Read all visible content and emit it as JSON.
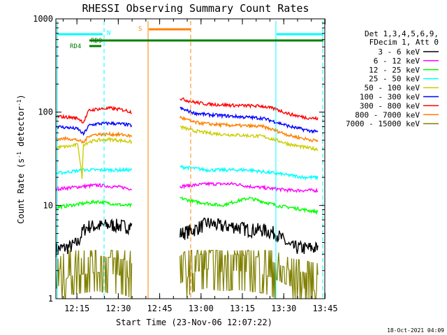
{
  "chart_data": {
    "type": "line",
    "title": "RHESSI Observing Summary Count Rates",
    "xlabel": "Start Time (23-Nov-06 12:07:22)",
    "ylabel_main": "Count Rate (s",
    "ylabel_sup1": "-1",
    "ylabel_mid": " detector",
    "ylabel_sup2": "-1",
    "ylabel_end": ")",
    "y_scale": "log",
    "ylim": [
      1,
      1000
    ],
    "xlim_minutes": [
      0,
      97.5
    ],
    "x_ticks": [
      {
        "label": "12:15",
        "min": 7.63
      },
      {
        "label": "12:30",
        "min": 22.63
      },
      {
        "label": "12:45",
        "min": 37.63
      },
      {
        "label": "13:00",
        "min": 52.63
      },
      {
        "label": "13:15",
        "min": 67.63
      },
      {
        "label": "13:30",
        "min": 82.63
      },
      {
        "label": "13:45",
        "min": 97.63
      }
    ],
    "y_ticks": [
      {
        "label": "1",
        "v": 1
      },
      {
        "label": "10",
        "v": 10
      },
      {
        "label": "100",
        "v": 100
      },
      {
        "label": "1000",
        "v": 1000
      }
    ],
    "legend_header": [
      "Det 1,3,4,5,6,9,",
      "FDecim 1, Att 0"
    ],
    "series": [
      {
        "name": "3 - 6 keV",
        "color": "#000000",
        "values": [
          [
            0,
            3.4
          ],
          [
            5,
            3.6
          ],
          [
            8,
            4
          ],
          [
            10,
            5.5
          ],
          [
            12,
            6
          ],
          [
            15,
            6
          ],
          [
            20,
            6.2
          ],
          [
            25,
            6
          ],
          [
            27.5,
            6
          ]
        ],
        "values2": [
          [
            45,
            5
          ],
          [
            50,
            5.5
          ],
          [
            55,
            6.5
          ],
          [
            60,
            6
          ],
          [
            65,
            6
          ],
          [
            70,
            5.5
          ],
          [
            75,
            5.5
          ],
          [
            80,
            5
          ],
          [
            85,
            3.6
          ],
          [
            90,
            3.5
          ],
          [
            95,
            3.5
          ]
        ]
      },
      {
        "name": "6 - 12 keV",
        "color": "#ff00ff",
        "values": [
          [
            0,
            15
          ],
          [
            5,
            15.5
          ],
          [
            10,
            16
          ],
          [
            15,
            16.5
          ],
          [
            20,
            16
          ],
          [
            25,
            15.5
          ],
          [
            27.5,
            15
          ]
        ],
        "values2": [
          [
            45,
            16
          ],
          [
            50,
            16.5
          ],
          [
            55,
            17
          ],
          [
            60,
            17
          ],
          [
            65,
            17
          ],
          [
            70,
            16
          ],
          [
            75,
            15.5
          ],
          [
            80,
            15
          ],
          [
            85,
            14.5
          ],
          [
            90,
            14.5
          ],
          [
            95,
            14.5
          ]
        ]
      },
      {
        "name": "12 - 25 keV",
        "color": "#00ff00",
        "values": [
          [
            0,
            9.5
          ],
          [
            5,
            10
          ],
          [
            10,
            10.5
          ],
          [
            15,
            11
          ],
          [
            20,
            10.5
          ],
          [
            25,
            10
          ],
          [
            27.5,
            10
          ]
        ],
        "values2": [
          [
            45,
            12
          ],
          [
            50,
            11
          ],
          [
            55,
            10.5
          ],
          [
            60,
            10
          ],
          [
            65,
            11
          ],
          [
            70,
            12
          ],
          [
            75,
            11
          ],
          [
            80,
            10
          ],
          [
            85,
            9.5
          ],
          [
            90,
            9
          ],
          [
            95,
            8.5
          ]
        ]
      },
      {
        "name": "25 - 50 keV",
        "color": "#00ffff",
        "values": [
          [
            0,
            22
          ],
          [
            5,
            23
          ],
          [
            10,
            24
          ],
          [
            15,
            24
          ],
          [
            20,
            24
          ],
          [
            25,
            24
          ],
          [
            27.5,
            24
          ]
        ],
        "values2": [
          [
            45,
            26
          ],
          [
            50,
            25
          ],
          [
            55,
            24
          ],
          [
            60,
            24
          ],
          [
            65,
            24
          ],
          [
            70,
            24
          ],
          [
            75,
            23
          ],
          [
            80,
            22
          ],
          [
            85,
            21
          ],
          [
            90,
            20
          ],
          [
            95,
            20
          ]
        ]
      },
      {
        "name": "50 - 100 keV",
        "color": "#cccc00",
        "values": [
          [
            0,
            42
          ],
          [
            5,
            43
          ],
          [
            8,
            45
          ],
          [
            9.5,
            20
          ],
          [
            10,
            45
          ],
          [
            12,
            48
          ],
          [
            15,
            50
          ],
          [
            20,
            51
          ],
          [
            25,
            49
          ],
          [
            27.5,
            48
          ]
        ],
        "values2": [
          [
            45,
            70
          ],
          [
            50,
            63
          ],
          [
            55,
            60
          ],
          [
            60,
            58
          ],
          [
            65,
            57
          ],
          [
            70,
            56
          ],
          [
            75,
            55
          ],
          [
            80,
            50
          ],
          [
            85,
            45
          ],
          [
            90,
            42
          ],
          [
            95,
            40
          ]
        ]
      },
      {
        "name": "100 - 300 keV",
        "color": "#0000ff",
        "values": [
          [
            0,
            70
          ],
          [
            5,
            68
          ],
          [
            8,
            66
          ],
          [
            10,
            58
          ],
          [
            12,
            72
          ],
          [
            15,
            75
          ],
          [
            20,
            76
          ],
          [
            25,
            74
          ],
          [
            27.5,
            72
          ]
        ],
        "values2": [
          [
            45,
            110
          ],
          [
            50,
            98
          ],
          [
            55,
            94
          ],
          [
            60,
            92
          ],
          [
            65,
            90
          ],
          [
            70,
            88
          ],
          [
            75,
            86
          ],
          [
            80,
            78
          ],
          [
            85,
            70
          ],
          [
            90,
            65
          ],
          [
            95,
            61
          ]
        ]
      },
      {
        "name": "300 - 800 keV",
        "color": "#ff0000",
        "values": [
          [
            0,
            90
          ],
          [
            5,
            88
          ],
          [
            8,
            86
          ],
          [
            10,
            78
          ],
          [
            12,
            104
          ],
          [
            15,
            108
          ],
          [
            20,
            110
          ],
          [
            25,
            105
          ],
          [
            27.5,
            100
          ]
        ],
        "values2": [
          [
            45,
            140
          ],
          [
            50,
            128
          ],
          [
            55,
            122
          ],
          [
            60,
            120
          ],
          [
            65,
            118
          ],
          [
            70,
            117
          ],
          [
            75,
            116
          ],
          [
            80,
            107
          ],
          [
            85,
            95
          ],
          [
            90,
            88
          ],
          [
            95,
            85
          ]
        ]
      },
      {
        "name": "800 - 7000 keV",
        "color": "#ff8000",
        "values": [
          [
            0,
            52
          ],
          [
            5,
            52
          ],
          [
            8,
            50
          ],
          [
            10,
            47
          ],
          [
            12,
            56
          ],
          [
            15,
            58
          ],
          [
            20,
            58
          ],
          [
            25,
            57
          ],
          [
            27.5,
            55
          ]
        ],
        "values2": [
          [
            45,
            88
          ],
          [
            50,
            78
          ],
          [
            55,
            75
          ],
          [
            60,
            73
          ],
          [
            65,
            72
          ],
          [
            70,
            71
          ],
          [
            75,
            70
          ],
          [
            80,
            63
          ],
          [
            85,
            56
          ],
          [
            90,
            52
          ],
          [
            95,
            49
          ]
        ]
      },
      {
        "name": "7000 - 15000 keV",
        "color": "#808000",
        "values": [
          [
            0,
            1.6
          ],
          [
            5,
            2.2
          ],
          [
            10,
            2.3
          ],
          [
            15,
            2.4
          ],
          [
            20,
            2.3
          ],
          [
            25,
            2.2
          ],
          [
            27.5,
            2
          ]
        ],
        "values2": [
          [
            45,
            1.8
          ],
          [
            50,
            2.4
          ],
          [
            55,
            2.6
          ],
          [
            60,
            2.4
          ],
          [
            65,
            2.5
          ],
          [
            70,
            2.4
          ],
          [
            75,
            2.3
          ],
          [
            80,
            2
          ],
          [
            85,
            1.7
          ],
          [
            90,
            1.6
          ],
          [
            95,
            1.5
          ]
        ]
      }
    ],
    "annotations": [
      {
        "label": "N",
        "color": "#00ffff"
      },
      {
        "label": "S",
        "color": "#ff8000"
      },
      {
        "label": "RD9",
        "color": "#008000"
      },
      {
        "label": "RD4",
        "color": "#008000"
      }
    ],
    "footer_stamp": "18-Oct-2021 04:09"
  }
}
